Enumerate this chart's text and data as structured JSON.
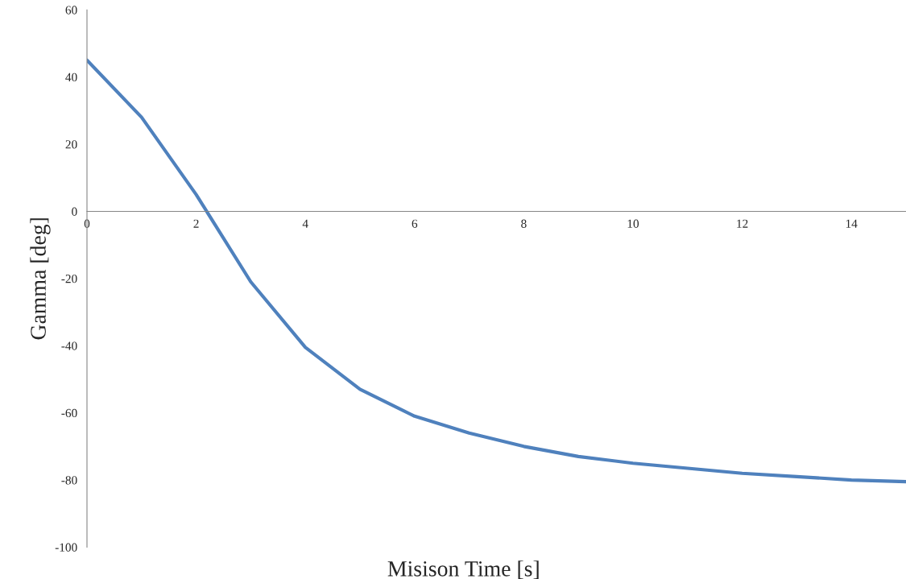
{
  "chart_data": {
    "type": "line",
    "xlabel": "Misison Time [s]",
    "ylabel": "Gamma [deg]",
    "x": [
      0,
      1,
      2,
      3,
      4,
      5,
      6,
      7,
      8,
      9,
      10,
      11,
      12,
      13,
      14,
      15
    ],
    "series": [
      {
        "color": "#4f81bd",
        "values": [
          45,
          28,
          5,
          -21,
          -40.5,
          -53,
          -61,
          -66,
          -70,
          -73,
          -75,
          -76.5,
          -78,
          -79,
          -80,
          -80.5
        ]
      }
    ],
    "xlim": [
      0,
      15
    ],
    "xticks": [
      0,
      2,
      4,
      6,
      8,
      10,
      12,
      14
    ],
    "ylim": [
      -100,
      60
    ],
    "yticks": [
      -100,
      -80,
      -60,
      -40,
      -20,
      0,
      20,
      40,
      60
    ],
    "grid": false,
    "marker": "none",
    "line_style": "solid"
  }
}
